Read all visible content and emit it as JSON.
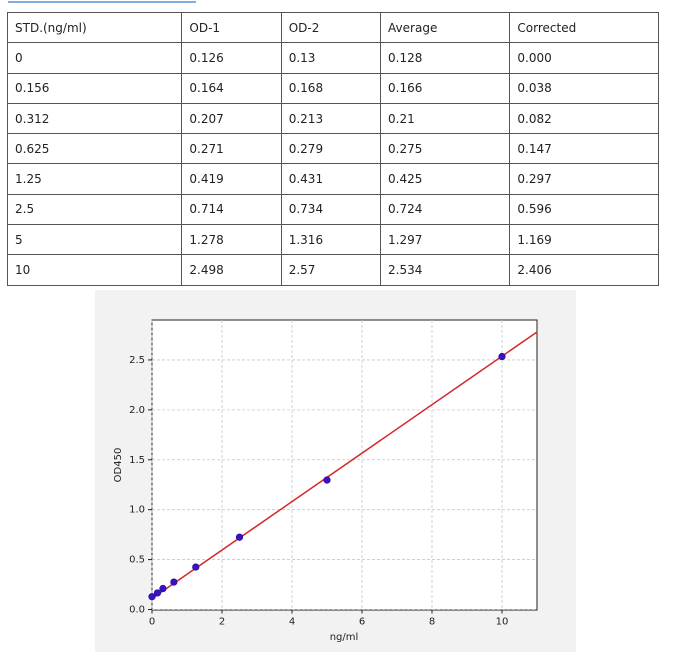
{
  "table": {
    "header": [
      "STD.(ng/ml)",
      "OD-1",
      "OD-2",
      "Average",
      "Corrected"
    ],
    "rows": [
      [
        "0",
        "0.126",
        "0.13",
        "0.128",
        "0.000"
      ],
      [
        "0.156",
        "0.164",
        "0.168",
        "0.166",
        "0.038"
      ],
      [
        "0.312",
        "0.207",
        "0.213",
        "0.21",
        "0.082"
      ],
      [
        "0.625",
        "0.271",
        "0.279",
        "0.275",
        "0.147"
      ],
      [
        "1.25",
        "0.419",
        "0.431",
        "0.425",
        "0.297"
      ],
      [
        "2.5",
        "0.714",
        "0.734",
        "0.724",
        "0.596"
      ],
      [
        "5",
        "1.278",
        "1.316",
        "1.297",
        "1.169"
      ],
      [
        "10",
        "2.498",
        "2.57",
        "2.534",
        "2.406"
      ]
    ]
  },
  "chart_data": {
    "type": "scatter",
    "x_label": "ng/ml",
    "y_label": "OD450",
    "xlim": [
      0,
      11
    ],
    "ylim": [
      0,
      2.9
    ],
    "xticks": [
      0,
      2,
      4,
      6,
      8,
      10
    ],
    "yticks": [
      {
        "value": 0,
        "label": "0.0"
      },
      0.5,
      {
        "value": 1,
        "label": "1.0"
      },
      1.5,
      {
        "value": 2,
        "label": "2.0"
      },
      2.5
    ],
    "grid": true,
    "series": [
      {
        "color": "#3a0fc8",
        "x": [
          0,
          0.156,
          0.312,
          0.625,
          1.25,
          2.5,
          5,
          10
        ],
        "values": [
          0.128,
          0.166,
          0.21,
          0.275,
          0.425,
          0.724,
          1.297,
          2.534
        ]
      }
    ],
    "fit_line": {
      "color": "#d62728",
      "x": [
        0,
        11
      ],
      "values": [
        0.11,
        2.78
      ]
    }
  }
}
